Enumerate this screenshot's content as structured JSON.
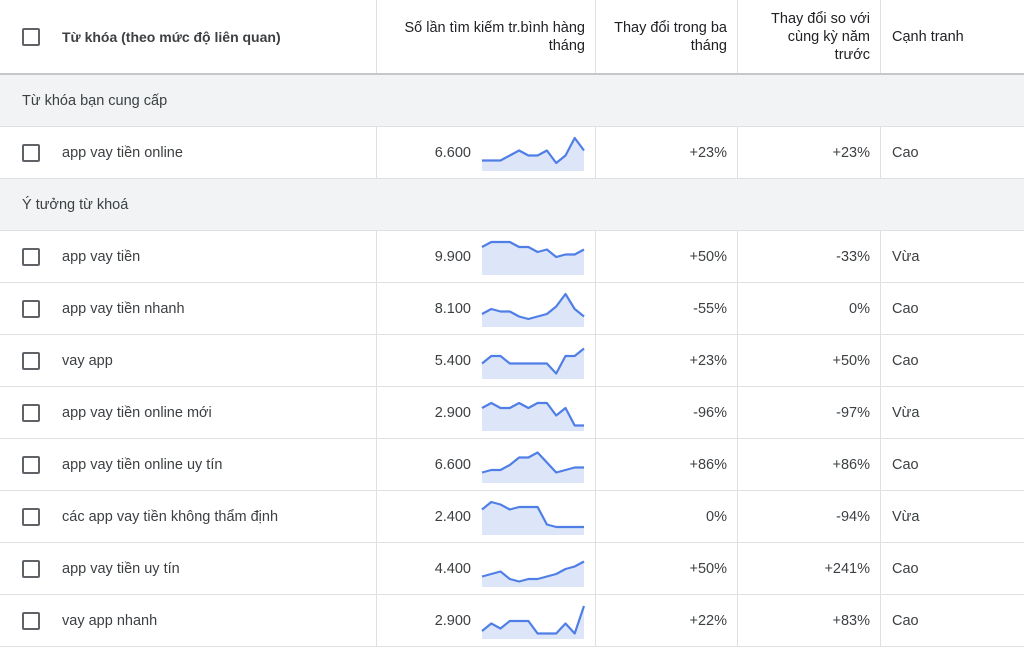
{
  "header": {
    "keyword": "Từ khóa (theo mức độ liên quan)",
    "avg_searches": "Số lần tìm kiếm tr.bình hàng tháng",
    "three_month": "Thay đổi trong ba tháng",
    "yoy": "Thay đổi so với cùng kỳ năm trước",
    "competition": "Cạnh tranh"
  },
  "groups": {
    "provided": "Từ khóa bạn cung cấp",
    "ideas": "Ý tưởng từ khoá"
  },
  "provided_rows": [
    {
      "keyword": "app vay tiền online",
      "volume": "6.600",
      "three_month": "+23%",
      "yoy": "+23%",
      "competition": "Cao",
      "trend": [
        3,
        3,
        3,
        5,
        7,
        5,
        5,
        7,
        2,
        5,
        12,
        7
      ]
    }
  ],
  "idea_rows": [
    {
      "keyword": "app vay tiền",
      "volume": "9.900",
      "three_month": "+50%",
      "yoy": "-33%",
      "competition": "Vừa",
      "trend": [
        10,
        12,
        12,
        12,
        10,
        10,
        8,
        9,
        6,
        7,
        7,
        9
      ]
    },
    {
      "keyword": "app vay tiền nhanh",
      "volume": "8.100",
      "three_month": "-55%",
      "yoy": "0%",
      "competition": "Cao",
      "trend": [
        4,
        6,
        5,
        5,
        3,
        2,
        3,
        4,
        7,
        12,
        6,
        3
      ]
    },
    {
      "keyword": "vay app",
      "volume": "5.400",
      "three_month": "+23%",
      "yoy": "+50%",
      "competition": "Cao",
      "trend": [
        5,
        8,
        8,
        5,
        5,
        5,
        5,
        5,
        1,
        8,
        8,
        11
      ]
    },
    {
      "keyword": "app vay tiền online mới",
      "volume": "2.900",
      "three_month": "-96%",
      "yoy": "-97%",
      "competition": "Vừa",
      "trend": [
        8,
        10,
        8,
        8,
        10,
        8,
        10,
        10,
        5,
        8,
        1,
        1
      ]
    },
    {
      "keyword": "app vay tiền online uy tín",
      "volume": "6.600",
      "three_month": "+86%",
      "yoy": "+86%",
      "competition": "Cao",
      "trend": [
        3,
        4,
        4,
        6,
        9,
        9,
        11,
        7,
        3,
        4,
        5,
        5
      ]
    },
    {
      "keyword": "các app vay tiền không thẩm định",
      "volume": "2.400",
      "three_month": "0%",
      "yoy": "-94%",
      "competition": "Vừa",
      "trend": [
        9,
        12,
        11,
        9,
        10,
        10,
        10,
        3,
        2,
        2,
        2,
        2
      ]
    },
    {
      "keyword": "app vay tiền uy tín",
      "volume": "4.400",
      "three_month": "+50%",
      "yoy": "+241%",
      "competition": "Cao",
      "trend": [
        3,
        4,
        5,
        2,
        1,
        2,
        2,
        3,
        4,
        6,
        7,
        9
      ]
    },
    {
      "keyword": "vay app nhanh",
      "volume": "2.900",
      "three_month": "+22%",
      "yoy": "+83%",
      "competition": "Cao",
      "trend": [
        2,
        5,
        3,
        6,
        6,
        6,
        1,
        1,
        1,
        5,
        1,
        12
      ]
    }
  ],
  "colors": {
    "sparkline": "#4f7fe6",
    "sparkfill": "#dde6f9",
    "group_bg": "#f1f3f4"
  },
  "icons": {
    "checkbox": "checkbox-icon"
  }
}
